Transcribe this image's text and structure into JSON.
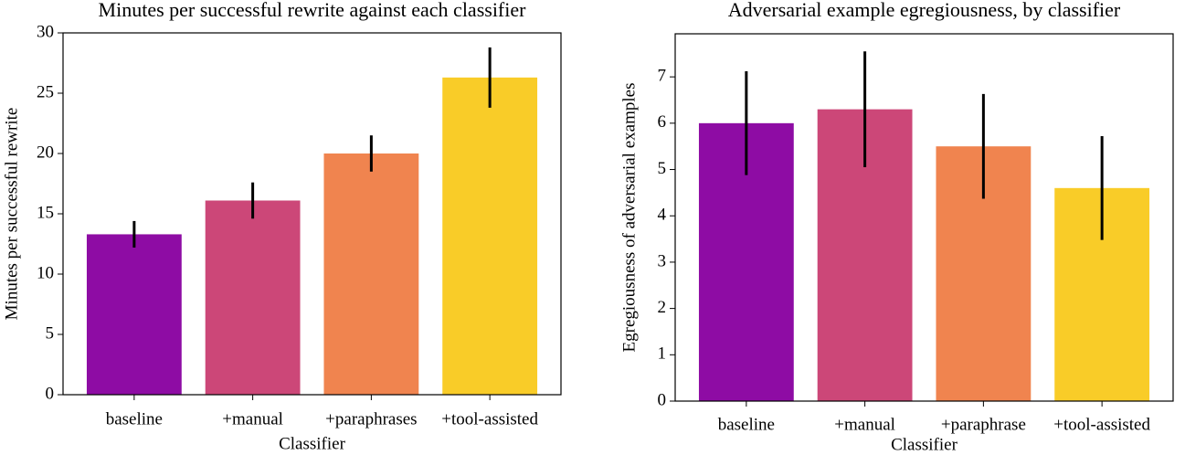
{
  "chart_data": [
    {
      "type": "bar",
      "title": "Minutes per successful rewrite against each classifier",
      "xlabel": "Classifier",
      "ylabel": "Minutes per successful rewrite",
      "categories": [
        "baseline",
        "+manual",
        "+paraphrases",
        "+tool-assisted"
      ],
      "values": [
        13.3,
        16.1,
        20.0,
        26.3
      ],
      "errors": [
        1.1,
        1.5,
        1.5,
        2.5
      ],
      "colors": [
        "#8e0ca4",
        "#cc4778",
        "#f0844f",
        "#f9cc28"
      ],
      "ylim": [
        0,
        30
      ],
      "yticks": [
        0,
        5,
        10,
        15,
        20,
        25,
        30
      ]
    },
    {
      "type": "bar",
      "title": "Adversarial example egregiousness, by classifier",
      "xlabel": "Classifier",
      "ylabel": "Egregiousness of adversarial examples",
      "categories": [
        "baseline",
        "+manual",
        "+paraphrase",
        "+tool-assisted"
      ],
      "values": [
        6.0,
        6.3,
        5.5,
        4.6
      ],
      "errors": [
        1.12,
        1.25,
        1.13,
        1.12
      ],
      "colors": [
        "#8e0ca4",
        "#cc4778",
        "#f0844f",
        "#f9cc28"
      ],
      "ylim": [
        0,
        7.93
      ],
      "yticks": [
        0,
        1,
        2,
        3,
        4,
        5,
        6,
        7
      ]
    }
  ]
}
